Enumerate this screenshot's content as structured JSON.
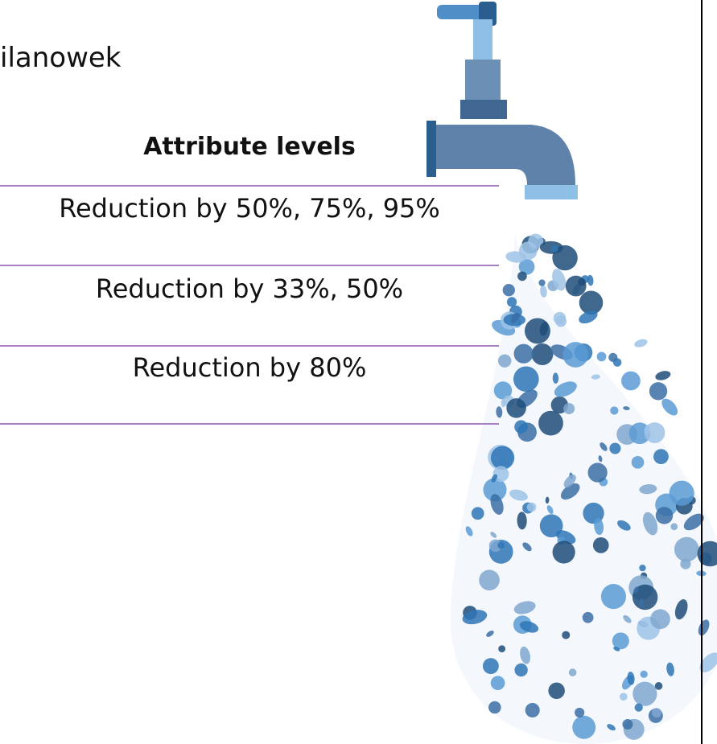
{
  "header": {
    "partial_text": "ilanowek"
  },
  "table": {
    "header": "Attribute levels",
    "rows": [
      "Reduction by 50%, 75%, 95%",
      "Reduction by 33%, 50%",
      "Reduction by 80%"
    ]
  }
}
